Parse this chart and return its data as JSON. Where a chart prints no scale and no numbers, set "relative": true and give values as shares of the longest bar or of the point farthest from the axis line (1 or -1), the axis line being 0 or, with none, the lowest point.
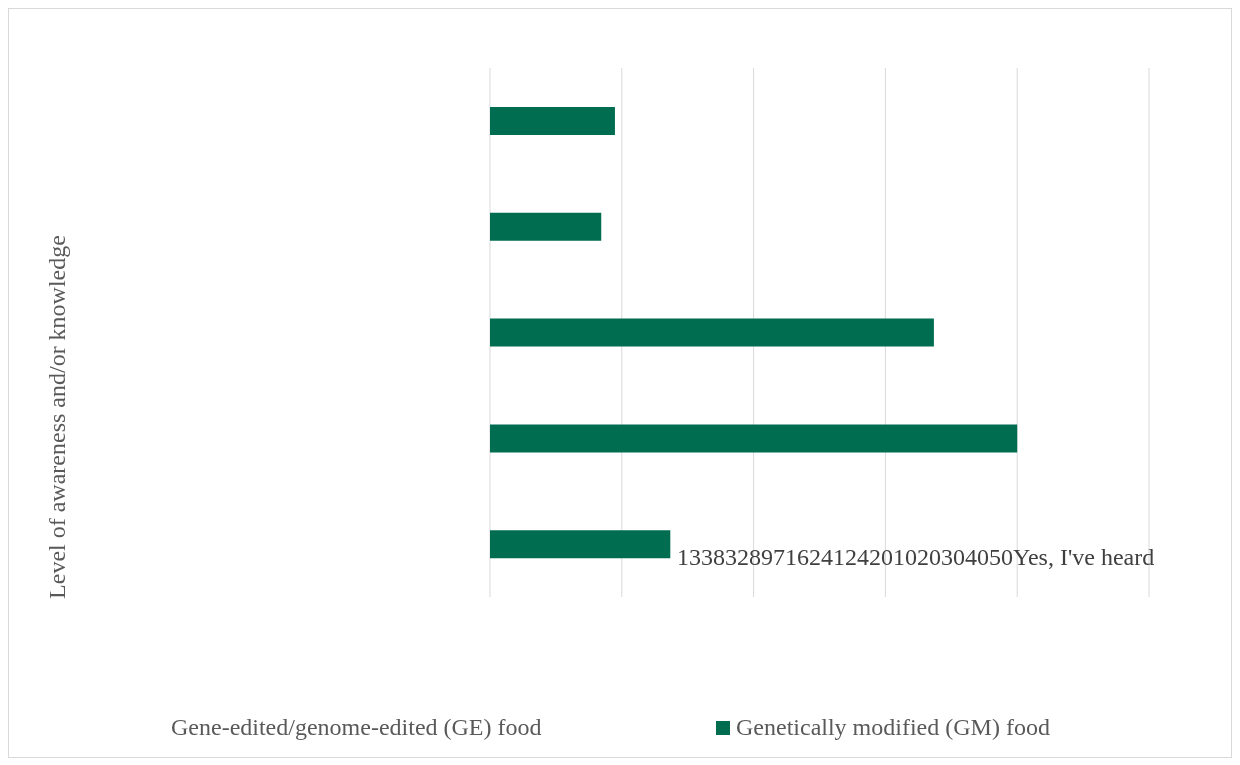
{
  "chart_data": {
    "type": "bar",
    "orientation": "horizontal",
    "relative": true,
    "categories": [
      null,
      null,
      null,
      null,
      null
    ],
    "series": [
      {
        "name": "Genetically modified (GM) food",
        "color": "#006d50",
        "values": [
          0.237,
          0.211,
          0.842,
          1,
          0.342
        ]
      }
    ],
    "tick_labels": false,
    "grid": "x",
    "legend": "bottom",
    "annotations": [
      "1338328971624124201020304050Yes, I've heard",
      "Gene-edited/genome-edited (GE) food",
      "Level of awareness and/or knowledge"
    ]
  }
}
